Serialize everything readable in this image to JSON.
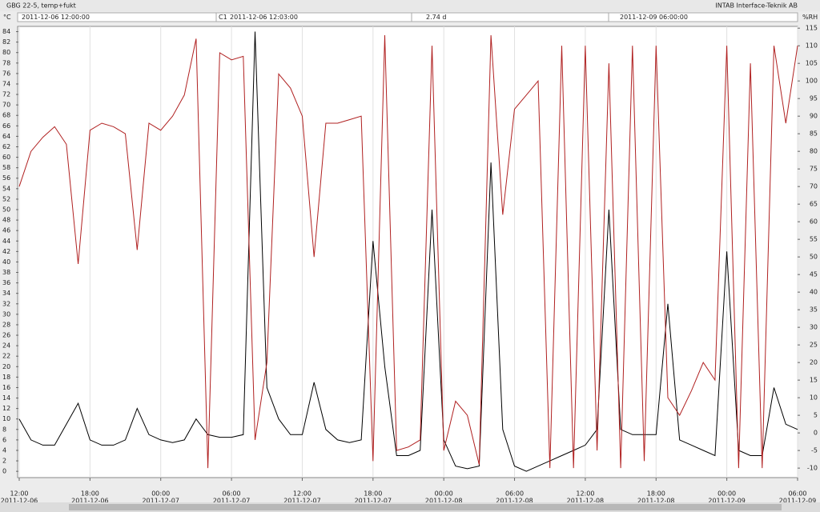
{
  "header": {
    "title": "GBG 22-5, temp+fukt",
    "company": "INTAB Interface-Teknik AB",
    "start": "2011-12-06 12:00:00",
    "cursor_label": "C1",
    "cursor_time": "2011-12-06 12:03:00",
    "span": "2.74 d",
    "end": "2011-12-09 06:00:00"
  },
  "chart_data": {
    "type": "line",
    "y_label": "°C",
    "y2_label": "%RH",
    "grid": "x",
    "x": [
      "2011-12-06 12:00",
      "2011-12-06 13:00",
      "2011-12-06 14:00",
      "2011-12-06 15:00",
      "2011-12-06 16:00",
      "2011-12-06 17:00",
      "2011-12-06 18:00",
      "2011-12-06 19:00",
      "2011-12-06 20:00",
      "2011-12-06 21:00",
      "2011-12-06 22:00",
      "2011-12-06 23:00",
      "2011-12-07 00:00",
      "2011-12-07 01:00",
      "2011-12-07 02:00",
      "2011-12-07 03:00",
      "2011-12-07 04:00",
      "2011-12-07 05:00",
      "2011-12-07 06:00",
      "2011-12-07 07:00",
      "2011-12-07 08:00",
      "2011-12-07 09:00",
      "2011-12-07 10:00",
      "2011-12-07 11:00",
      "2011-12-07 12:00",
      "2011-12-07 13:00",
      "2011-12-07 14:00",
      "2011-12-07 15:00",
      "2011-12-07 16:00",
      "2011-12-07 17:00",
      "2011-12-07 18:00",
      "2011-12-07 19:00",
      "2011-12-07 20:00",
      "2011-12-07 21:00",
      "2011-12-07 22:00",
      "2011-12-07 23:00",
      "2011-12-08 00:00",
      "2011-12-08 01:00",
      "2011-12-08 02:00",
      "2011-12-08 03:00",
      "2011-12-08 04:00",
      "2011-12-08 05:00",
      "2011-12-08 06:00",
      "2011-12-08 07:00",
      "2011-12-08 08:00",
      "2011-12-08 09:00",
      "2011-12-08 10:00",
      "2011-12-08 11:00",
      "2011-12-08 12:00",
      "2011-12-08 13:00",
      "2011-12-08 14:00",
      "2011-12-08 15:00",
      "2011-12-08 16:00",
      "2011-12-08 17:00",
      "2011-12-08 18:00",
      "2011-12-08 19:00",
      "2011-12-08 20:00",
      "2011-12-08 21:00",
      "2011-12-08 22:00",
      "2011-12-08 23:00",
      "2011-12-09 00:00",
      "2011-12-09 01:00",
      "2011-12-09 02:00",
      "2011-12-09 03:00",
      "2011-12-09 04:00",
      "2011-12-09 05:00",
      "2011-12-09 06:00"
    ],
    "series": [
      {
        "color": "#000000",
        "axis": "y",
        "values": [
          10,
          6,
          5,
          5,
          9,
          13,
          6,
          5,
          5,
          6,
          12,
          7,
          6,
          5.5,
          6,
          10,
          7,
          6.5,
          6.5,
          7,
          84,
          16,
          10,
          7,
          7,
          17,
          8,
          6,
          5.5,
          6,
          44,
          20,
          3,
          3,
          4,
          50,
          6,
          1,
          0.5,
          1,
          59,
          8,
          1,
          0,
          1,
          2,
          3,
          4,
          5,
          8,
          50,
          8,
          7,
          7,
          7,
          32,
          6,
          5,
          4,
          3,
          42,
          4,
          3,
          3,
          16,
          9,
          8
        ]
      },
      {
        "color": "#b02020",
        "axis": "y2",
        "values": [
          70,
          80,
          84,
          87,
          82,
          48,
          86,
          88,
          87,
          85,
          52,
          88,
          86,
          90,
          96,
          112,
          -10,
          108,
          106,
          107,
          -2,
          20,
          102,
          98,
          90,
          50,
          88,
          88,
          89,
          90,
          -8,
          113,
          -5,
          -4,
          -2,
          110,
          -5,
          9,
          5,
          -9,
          113,
          62,
          92,
          96,
          100,
          -10,
          110,
          -10,
          110,
          -5,
          105,
          -10,
          110,
          -8,
          110,
          10,
          5,
          12,
          20,
          15,
          110,
          -10,
          105,
          -10,
          110,
          88,
          110
        ]
      }
    ],
    "xlim": [
      "2011-12-06 12:00",
      "2011-12-09 06:00"
    ],
    "xticks": [
      {
        "value": "2011-12-06 12:00",
        "label": "12:00",
        "date": "2011-12-06"
      },
      {
        "value": "2011-12-06 18:00",
        "label": "18:00",
        "date": "2011-12-06"
      },
      {
        "value": "2011-12-07 00:00",
        "label": "00:00",
        "date": "2011-12-07"
      },
      {
        "value": "2011-12-07 06:00",
        "label": "06:00",
        "date": "2011-12-07"
      },
      {
        "value": "2011-12-07 12:00",
        "label": "12:00",
        "date": "2011-12-07"
      },
      {
        "value": "2011-12-07 18:00",
        "label": "18:00",
        "date": "2011-12-07"
      },
      {
        "value": "2011-12-08 00:00",
        "label": "00:00",
        "date": "2011-12-08"
      },
      {
        "value": "2011-12-08 06:00",
        "label": "06:00",
        "date": "2011-12-08"
      },
      {
        "value": "2011-12-08 12:00",
        "label": "12:00",
        "date": "2011-12-08"
      },
      {
        "value": "2011-12-08 18:00",
        "label": "18:00",
        "date": "2011-12-08"
      },
      {
        "value": "2011-12-09 00:00",
        "label": "00:00",
        "date": "2011-12-09"
      },
      {
        "value": "2011-12-09 06:00",
        "label": "06:00",
        "date": "2011-12-09"
      }
    ],
    "ylim": [
      -1.2,
      85
    ],
    "yticks": [
      0,
      2,
      4,
      6,
      8,
      10,
      12,
      14,
      16,
      18,
      20,
      22,
      24,
      26,
      28,
      30,
      32,
      34,
      36,
      38,
      40,
      42,
      44,
      46,
      48,
      50,
      52,
      54,
      56,
      58,
      60,
      62,
      64,
      66,
      68,
      70,
      72,
      74,
      76,
      78,
      80,
      82,
      84
    ],
    "y2lim": [
      -12.7,
      115.5
    ],
    "y2ticks": [
      -10,
      -5,
      0,
      5,
      10,
      15,
      20,
      25,
      30,
      35,
      40,
      45,
      50,
      55,
      60,
      65,
      70,
      75,
      80,
      85,
      90,
      95,
      100,
      105,
      110,
      115
    ]
  }
}
